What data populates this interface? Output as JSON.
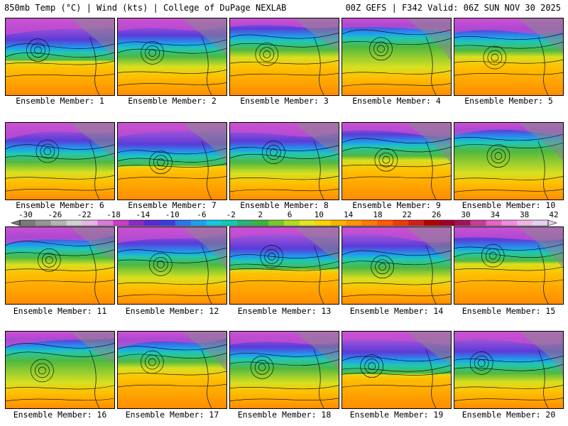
{
  "header": {
    "left": "850mb Temp (°C) | Wind (kts) | College of DuPage NEXLAB",
    "right": "00Z GEFS | F342 Valid: 06Z SUN NOV 30 2025"
  },
  "members": [
    "Ensemble Member: 1",
    "Ensemble Member: 2",
    "Ensemble Member: 3",
    "Ensemble Member: 4",
    "Ensemble Member: 5",
    "Ensemble Member: 6",
    "Ensemble Member: 7",
    "Ensemble Member: 8",
    "Ensemble Member: 9",
    "Ensemble Member: 10",
    "Ensemble Member: 11",
    "Ensemble Member: 12",
    "Ensemble Member: 13",
    "Ensemble Member: 14",
    "Ensemble Member: 15",
    "Ensemble Member: 16",
    "Ensemble Member: 17",
    "Ensemble Member: 18",
    "Ensemble Member: 19",
    "Ensemble Member: 20"
  ],
  "colorbar": {
    "labels": [
      "-30",
      "-26",
      "-22",
      "-18",
      "-14",
      "-10",
      "-6",
      "-2",
      "2",
      "6",
      "10",
      "14",
      "18",
      "22",
      "26",
      "30",
      "34",
      "38",
      "42"
    ],
    "colors": [
      "#7a7a7a",
      "#969696",
      "#b4b4b4",
      "#d2d2d2",
      "#e6b4e6",
      "#dc78dc",
      "#c83cc8",
      "#8c28c8",
      "#5a28d2",
      "#3c3cdc",
      "#2878e6",
      "#1ea0f0",
      "#14c8e6",
      "#14c8b4",
      "#28b478",
      "#3cb43c",
      "#78c828",
      "#b4dc1e",
      "#e6e61e",
      "#ffd200",
      "#ffb400",
      "#ff9600",
      "#ff7800",
      "#ff5a00",
      "#f03c00",
      "#d21e1e",
      "#b40000",
      "#a00028",
      "#a0145a",
      "#c83c96",
      "#e664c8",
      "#f08cdc",
      "#f0b4e6",
      "#e6d2f0"
    ]
  }
}
